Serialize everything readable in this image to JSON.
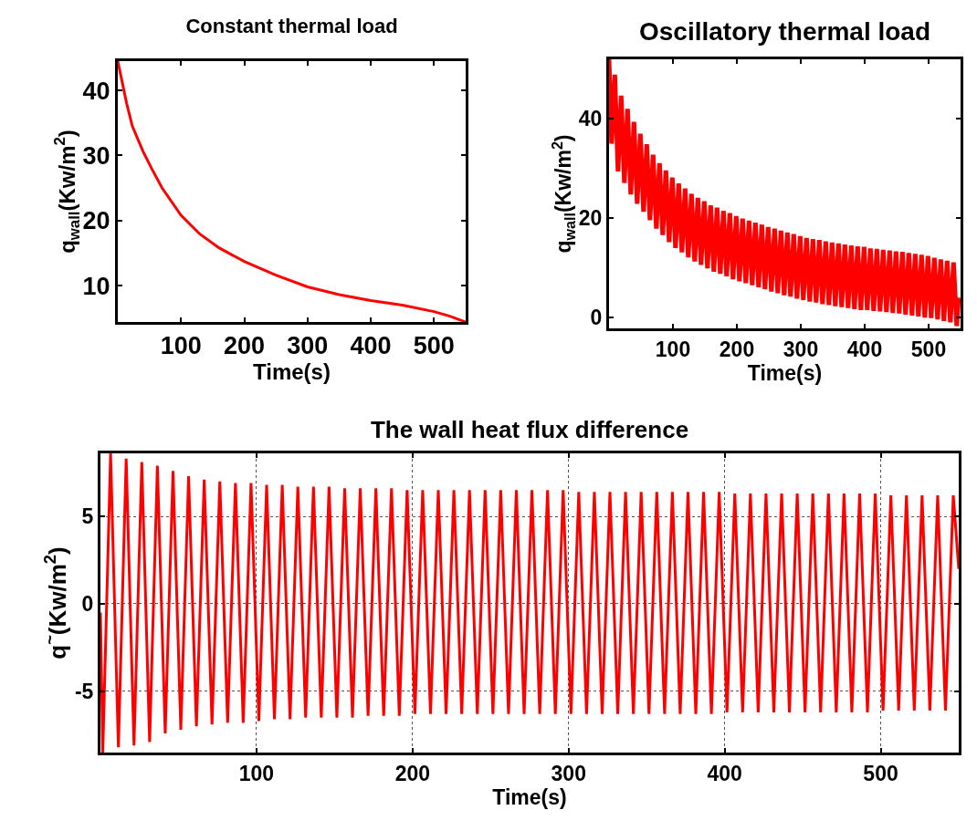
{
  "chart_data": [
    {
      "type": "line",
      "title": "Constant thermal load",
      "xlabel": "Time(s)",
      "ylabel": "q$_{wall}$(Kw/m$^{2}$)",
      "xlim": [
        0,
        550
      ],
      "xticks": [
        100,
        200,
        300,
        400,
        500
      ],
      "ylim": [
        4.4,
        44.5
      ],
      "yticks": [
        10,
        20,
        30,
        40
      ],
      "grid": false,
      "series": [
        {
          "color": "#ff0000",
          "x": [
            0,
            14,
            23,
            40,
            54,
            70,
            100,
            130,
            160,
            200,
            250,
            300,
            350,
            400,
            450,
            500,
            525,
            550
          ],
          "values": [
            44.5,
            38,
            34.5,
            30.6,
            27.9,
            25,
            20.8,
            17.9,
            15.8,
            13.7,
            11.6,
            9.8,
            8.6,
            7.7,
            7.0,
            6.0,
            5.3,
            4.4
          ]
        }
      ]
    },
    {
      "type": "line",
      "title": "Oscillatory thermal load",
      "xlabel": "Time(s)",
      "ylabel": "q$_{wall}$(Kw/m$^{2}$)",
      "xlim": [
        0,
        550
      ],
      "xticks": [
        100,
        200,
        300,
        400,
        500
      ],
      "ylim": [
        -2.2,
        52
      ],
      "yticks": [
        0,
        20,
        40
      ],
      "grid": false,
      "series": [
        {
          "color": "#ff0000",
          "x": [
            0,
            4,
            9,
            14,
            19,
            24,
            29,
            34,
            39,
            44,
            49,
            54,
            59,
            64,
            69,
            74,
            79,
            84,
            89,
            94,
            99,
            104,
            109,
            114,
            119,
            124,
            129,
            134,
            139,
            144,
            149,
            154,
            159,
            164,
            169,
            174,
            179,
            184,
            189,
            194,
            199,
            204,
            209,
            214,
            219,
            224,
            229,
            234,
            239,
            244,
            249,
            254,
            259,
            264,
            269,
            274,
            279,
            284,
            289,
            294,
            299,
            304,
            309,
            314,
            319,
            324,
            329,
            334,
            339,
            344,
            349,
            354,
            359,
            364,
            369,
            374,
            379,
            384,
            389,
            394,
            399,
            404,
            409,
            414,
            419,
            424,
            429,
            434,
            439,
            444,
            449,
            454,
            459,
            464,
            469,
            474,
            479,
            484,
            489,
            494,
            499,
            504,
            509,
            514,
            519,
            524,
            529,
            534,
            539,
            544,
            547
          ],
          "values": [
            52,
            35.0,
            48.9,
            29.4,
            44.7,
            27.1,
            42.0,
            24.8,
            39.4,
            22.9,
            37.0,
            21.3,
            34.9,
            19.6,
            32.8,
            17.9,
            31.1,
            16.6,
            29.6,
            15.2,
            28.2,
            14.0,
            27.0,
            13.1,
            26.0,
            12.1,
            24.9,
            11.3,
            24.1,
            10.6,
            23.4,
            9.9,
            22.6,
            9.2,
            22.1,
            8.8,
            21.5,
            8.3,
            21.0,
            7.7,
            20.4,
            7.3,
            19.9,
            6.9,
            19.5,
            6.5,
            19.1,
            6.1,
            18.7,
            5.7,
            18.2,
            5.2,
            17.9,
            4.9,
            17.5,
            4.5,
            17.1,
            4.2,
            16.8,
            3.8,
            16.4,
            3.5,
            16.0,
            3.2,
            15.8,
            3.0,
            15.6,
            2.7,
            15.3,
            2.5,
            15.1,
            2.3,
            14.9,
            2.1,
            14.7,
            1.9,
            14.5,
            1.7,
            14.3,
            1.5,
            14.2,
            1.5,
            13.9,
            1.3,
            13.8,
            1.2,
            13.6,
            1.1,
            13.5,
            0.9,
            13.3,
            0.8,
            13.2,
            0.6,
            13.0,
            0.4,
            12.8,
            0.2,
            12.6,
            0.0,
            12.4,
            -0.1,
            12.0,
            -0.4,
            11.7,
            -0.7,
            11.4,
            -1.0,
            11.1,
            -1.7,
            4.0
          ]
        }
      ]
    },
    {
      "type": "line",
      "title": "The wall heat flux difference",
      "xlabel": "Time(s)",
      "ylabel": "q$^{~}$(Kw/m$^{2}$)",
      "xlim": [
        0,
        550
      ],
      "xticks": [
        100,
        200,
        300,
        400,
        500
      ],
      "ylim": [
        -8.5,
        8.6
      ],
      "yticks": [
        -5,
        0,
        5
      ],
      "grid": true,
      "series": [
        {
          "color": "#ff0000",
          "x": [
            0,
            1.5,
            6.5,
            11.5,
            16.5,
            21.5,
            26.5,
            31.5,
            36.5,
            41.5,
            46.5,
            51.5,
            56.5,
            61.5,
            66.5,
            71.5,
            76.5,
            81.5,
            86.5,
            91.5,
            96.5,
            101.5,
            106.5,
            111.5,
            116.5,
            121.5,
            126.5,
            131.5,
            136.5,
            141.5,
            146.5,
            151.5,
            156.5,
            161.5,
            166.5,
            171.5,
            176.5,
            181.5,
            186.5,
            191.5,
            196.5,
            201.5,
            206.5,
            211.5,
            216.5,
            221.5,
            226.5,
            231.5,
            236.5,
            241.5,
            246.5,
            251.5,
            256.5,
            261.5,
            266.5,
            271.5,
            276.5,
            281.5,
            286.5,
            291.5,
            296.5,
            301.5,
            306.5,
            311.5,
            316.5,
            321.5,
            326.5,
            331.5,
            336.5,
            341.5,
            346.5,
            351.5,
            356.5,
            361.5,
            366.5,
            371.5,
            376.5,
            381.5,
            386.5,
            391.5,
            396.5,
            401.5,
            406.5,
            411.5,
            416.5,
            421.5,
            426.5,
            431.5,
            436.5,
            441.5,
            446.5,
            451.5,
            456.5,
            461.5,
            466.5,
            471.5,
            476.5,
            481.5,
            486.5,
            491.5,
            496.5,
            501.5,
            506.5,
            511.5,
            516.5,
            521.5,
            526.5,
            531.5,
            536.5,
            541.5,
            546.5,
            550
          ],
          "values": [
            -0.5,
            -8.5,
            8.6,
            -8.2,
            8.3,
            -8.1,
            8.1,
            -7.9,
            7.9,
            -7.4,
            7.6,
            -7.2,
            7.3,
            -7.0,
            7.1,
            -6.9,
            7.0,
            -6.8,
            6.9,
            -6.8,
            6.9,
            -6.7,
            6.8,
            -6.6,
            6.8,
            -6.6,
            6.7,
            -6.5,
            6.7,
            -6.5,
            6.7,
            -6.5,
            6.6,
            -6.5,
            6.6,
            -6.4,
            6.6,
            -6.4,
            6.6,
            -6.4,
            6.5,
            -6.3,
            6.5,
            -6.3,
            6.5,
            -6.3,
            6.5,
            -6.3,
            6.5,
            -6.3,
            6.5,
            -6.3,
            6.5,
            -6.3,
            6.5,
            -6.3,
            6.5,
            -6.3,
            6.5,
            -6.3,
            6.5,
            -6.3,
            6.4,
            -6.3,
            6.4,
            -6.3,
            6.4,
            -6.3,
            6.4,
            -6.3,
            6.4,
            -6.3,
            6.4,
            -6.3,
            6.4,
            -6.3,
            6.4,
            -6.3,
            6.4,
            -6.3,
            6.4,
            -6.2,
            6.3,
            -6.2,
            6.3,
            -6.2,
            6.3,
            -6.2,
            6.3,
            -6.2,
            6.3,
            -6.2,
            6.3,
            -6.2,
            6.3,
            -6.2,
            6.3,
            -6.2,
            6.3,
            -6.2,
            6.3,
            -6.1,
            6.2,
            -6.1,
            6.2,
            -6.1,
            6.2,
            -6.1,
            6.2,
            -6.1,
            6.2,
            2.0
          ]
        }
      ]
    }
  ]
}
